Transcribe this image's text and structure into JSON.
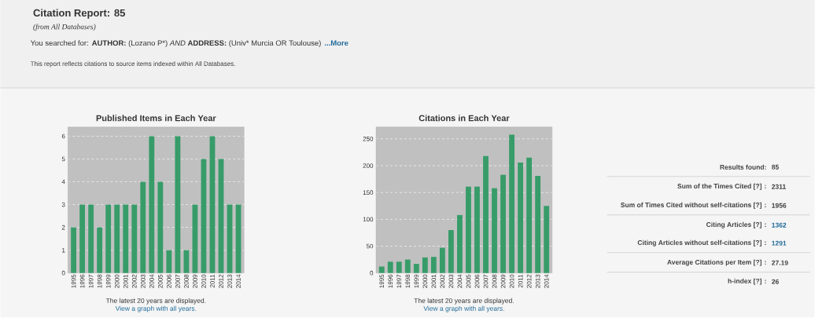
{
  "chart_data": [
    {
      "type": "other",
      "title": "Citation Report: 85",
      "subtitle": "(from All Databases)",
      "annotations": [
        "You searched for:",
        "AUTHOR:",
        "(Lozano P*)",
        "AND",
        "ADDRESS:",
        "(Univ* Murcia OR Toulouse)",
        "...More",
        "This report reflects citations to source items indexed within All Databases."
      ]
    },
    {
      "type": "bar",
      "title": "Published Items in Each Year",
      "categories": [
        "1995",
        "1996",
        "1997",
        "1998",
        "1999",
        "2000",
        "2001",
        "2002",
        "2003",
        "2004",
        "2005",
        "2006",
        "2007",
        "2008",
        "2009",
        "2010",
        "2011",
        "2012",
        "2013",
        "2014"
      ],
      "values": [
        2,
        3,
        3,
        2,
        3,
        3,
        3,
        3,
        4,
        6,
        4,
        1,
        6,
        1,
        3,
        5,
        6,
        5,
        3,
        3
      ],
      "color": "#379c69",
      "ylim": [
        0,
        6.4
      ],
      "yticks": [
        0,
        1,
        2,
        3,
        4,
        5,
        6
      ],
      "grid": "y",
      "annotations": [
        "The latest 20 years are displayed.",
        "View a graph with all years."
      ]
    },
    {
      "type": "bar",
      "title": "Citations in Each Year",
      "categories": [
        "1995",
        "1996",
        "1997",
        "1998",
        "1999",
        "2000",
        "2001",
        "2002",
        "2003",
        "2004",
        "2005",
        "2006",
        "2007",
        "2008",
        "2009",
        "2010",
        "2011",
        "2012",
        "2013",
        "2014"
      ],
      "values": [
        12,
        21,
        21,
        25,
        17,
        29,
        30,
        47,
        80,
        108,
        161,
        161,
        218,
        158,
        183,
        258,
        206,
        215,
        181,
        125
      ],
      "color": "#379c69",
      "ylim": [
        0,
        272
      ],
      "yticks": [
        0,
        50,
        100,
        150,
        200,
        250
      ],
      "grid": "y",
      "annotations": [
        "The latest 20 years are displayed.",
        "View a graph with all years."
      ]
    },
    {
      "type": "other",
      "annotations": [
        "Results found:",
        "85",
        "Sum of the Times Cited [?] :",
        "2311",
        "Sum of Times Cited without self-citations [?] :",
        "1956",
        "Citing Articles [?] :",
        "1362",
        "Citing Articles without self-citations [?] :",
        "1291",
        "Average Citations per Item [?] :",
        "27.19",
        "h-index [?] :",
        "26"
      ]
    }
  ]
}
